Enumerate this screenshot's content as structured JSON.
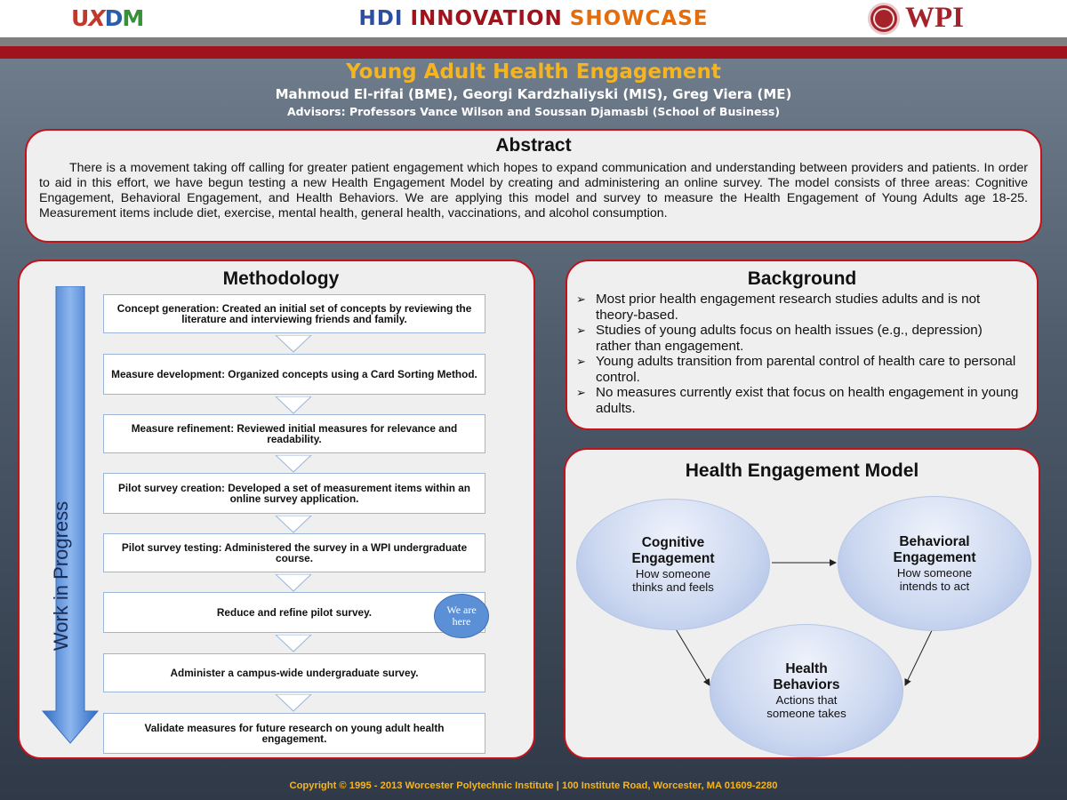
{
  "header": {
    "logo_left": {
      "u": "U",
      "x": "X",
      "d": "D",
      "m": "M"
    },
    "showcase": {
      "hdi": "HDI",
      "innovation": "INNOVATION",
      "showcase": "SHOWCASE"
    },
    "logo_right": "WPI"
  },
  "poster": {
    "title": "Young Adult Health Engagement",
    "authors": "Mahmoud El-rifai (BME), Georgi Kardzhaliyski (MIS), Greg Viera (ME)",
    "advisors": "Advisors: Professors Vance Wilson and Soussan Djamasbi (School of Business)"
  },
  "abstract": {
    "title": "Abstract",
    "text": "There is a movement taking off calling for greater patient engagement which hopes to expand communication and understanding between providers and patients. In order to aid in this effort, we have begun testing a new Health Engagement Model by creating and administering an online survey. The model consists of three areas: Cognitive Engagement, Behavioral Engagement, and Health Behaviors. We are applying this model and survey to  measure the Health Engagement of Young Adults age 18-25. Measurement items include diet, exercise, mental health, general health, vaccinations, and alcohol consumption."
  },
  "methodology": {
    "title": "Methodology",
    "arrow_label": "Work in Progress",
    "here_label": "We are here",
    "steps": [
      "Concept generation: Created an initial set of concepts by reviewing the literature and interviewing friends and family.",
      "Measure development: Organized concepts using a Card Sorting Method.",
      "Measure refinement: Reviewed initial measures for relevance and readability.",
      "Pilot survey creation: Developed a set of measurement items within an online survey application.",
      "Pilot survey testing: Administered the survey in a WPI undergraduate course.",
      "Reduce and refine pilot survey.",
      "Administer a campus-wide undergraduate survey.",
      "Validate measures for future research on young adult health engagement."
    ]
  },
  "background": {
    "title": "Background",
    "bullet": "➢",
    "items": [
      " Most prior health engagement research studies adults and is not theory-based.",
      "Studies of young adults focus on health issues (e.g., depression) rather than engagement.",
      "Young adults transition from parental control of health care to personal control.",
      "No measures currently exist that focus on health engagement in young adults."
    ]
  },
  "model": {
    "title": "Health Engagement Model",
    "cognitive": {
      "title_line1": "Cognitive",
      "title_line2": "Engagement",
      "desc_line1": "How someone",
      "desc_line2": "thinks and feels"
    },
    "behavioral": {
      "title_line1": "Behavioral",
      "title_line2": "Engagement",
      "desc_line1": "How someone",
      "desc_line2": "intends to act"
    },
    "health": {
      "title_line1": "Health",
      "title_line2": "Behaviors",
      "desc_line1": "Actions that",
      "desc_line2": "someone takes"
    }
  },
  "footer": "Copyright © 1995 - 2013 Worcester Polytechnic Institute | 100 Institute Road, Worcester, MA 01609-2280",
  "colors": {
    "accent_red": "#a0131c",
    "title_gold": "#f5b521",
    "arrow_blue": "#4a86d8",
    "panel_bg": "#efefef"
  }
}
